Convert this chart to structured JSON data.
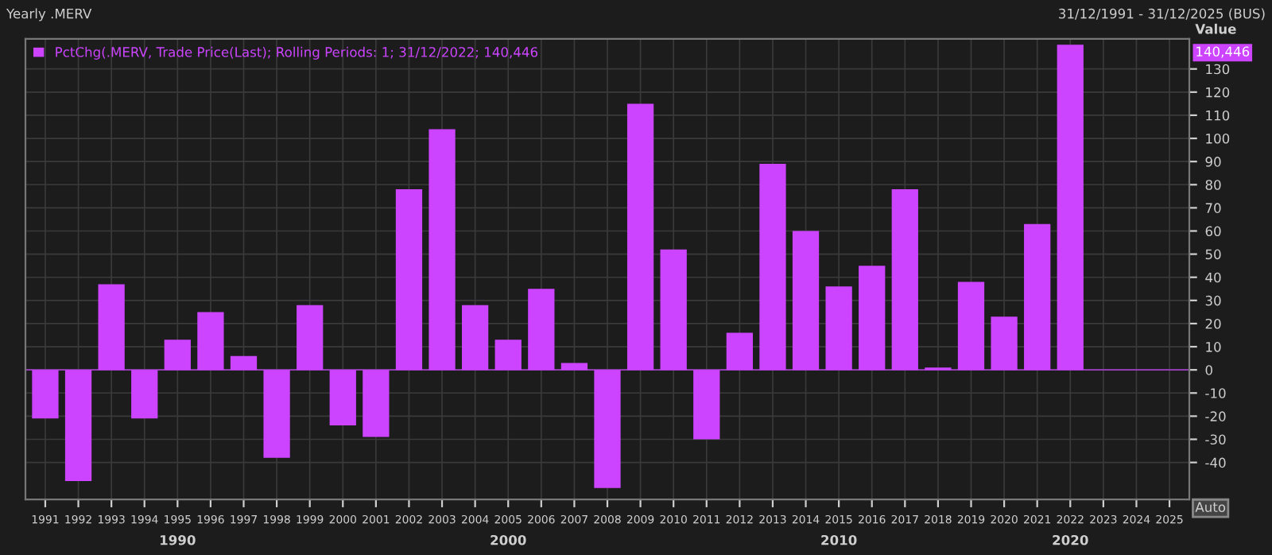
{
  "chart_data": {
    "type": "bar",
    "title": "Yearly .MERV",
    "subtitle": "31/12/1991 - 31/12/2025 (BUS)",
    "ylabel": "Value",
    "categories": [
      "1991",
      "1992",
      "1993",
      "1994",
      "1995",
      "1996",
      "1997",
      "1998",
      "1999",
      "2000",
      "2001",
      "2002",
      "2003",
      "2004",
      "2005",
      "2006",
      "2007",
      "2008",
      "2009",
      "2010",
      "2011",
      "2012",
      "2013",
      "2014",
      "2015",
      "2016",
      "2017",
      "2018",
      "2019",
      "2020",
      "2021",
      "2022",
      "2023",
      "2024",
      "2025"
    ],
    "series": [
      {
        "name": "PctChg(.MERV, Trade Price(Last); Rolling Periods: 1; 31/12/2022; 140,446",
        "color": "#cc44ff",
        "values": [
          -21,
          -48,
          37,
          -21,
          13,
          25,
          6,
          -38,
          28,
          -24,
          -29,
          78,
          104,
          28,
          13,
          35,
          3,
          -51,
          115,
          52,
          -30,
          16,
          89,
          60,
          36,
          45,
          78,
          1,
          38,
          23,
          63,
          140.446,
          null,
          null,
          null
        ]
      }
    ],
    "ylim": [
      -56,
      143
    ],
    "yticks": [
      -40,
      -30,
      -20,
      -10,
      0,
      10,
      20,
      30,
      40,
      50,
      60,
      70,
      80,
      90,
      100,
      110,
      120,
      130
    ],
    "ref_lines": [
      {
        "axis": "y",
        "value": 0,
        "color": "#cc44ff"
      }
    ],
    "annotations": [
      "140,446",
      "1990",
      "2000",
      "2010",
      "2020",
      "Auto"
    ],
    "grid": true,
    "legend": "top left"
  }
}
